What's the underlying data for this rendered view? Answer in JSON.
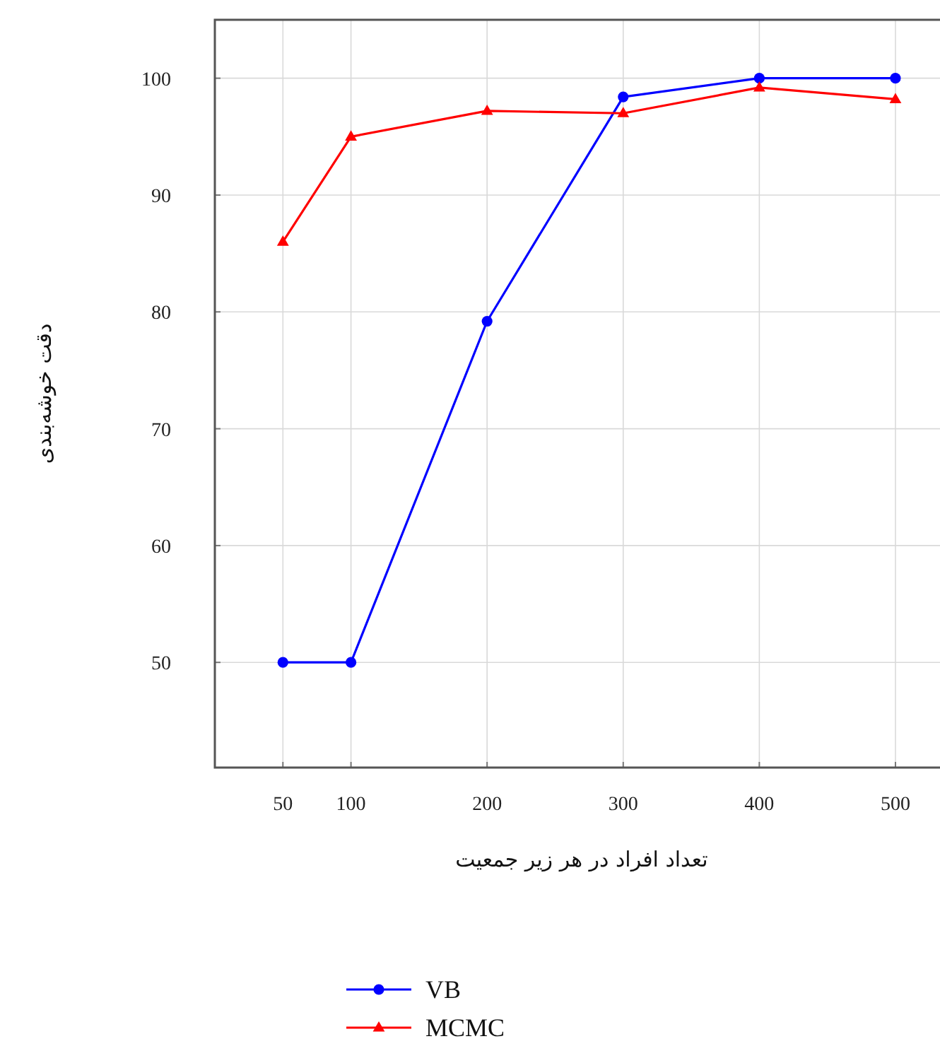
{
  "chart_data": {
    "type": "line",
    "xlabel": "تعداد افراد در هر زیر جمعیت",
    "ylabel": "دقت خوشه‌بندی",
    "x": [
      50,
      100,
      200,
      300,
      400,
      500
    ],
    "series": [
      {
        "name": "VB",
        "color": "#0000ff",
        "marker": "circle",
        "values": [
          50,
          50,
          79.2,
          98.4,
          100,
          100
        ]
      },
      {
        "name": "MCMC",
        "color": "#ff0000",
        "marker": "triangle",
        "values": [
          86,
          95,
          97.2,
          97,
          99.2,
          98.2
        ]
      }
    ],
    "xlim": [
      0,
      540
    ],
    "ylim": [
      41,
      105
    ],
    "xticks": [
      50,
      100,
      200,
      300,
      400,
      500
    ],
    "yticks": [
      50,
      60,
      70,
      80,
      90,
      100
    ],
    "grid": true,
    "legend": "bottom",
    "line_style": "solid"
  }
}
